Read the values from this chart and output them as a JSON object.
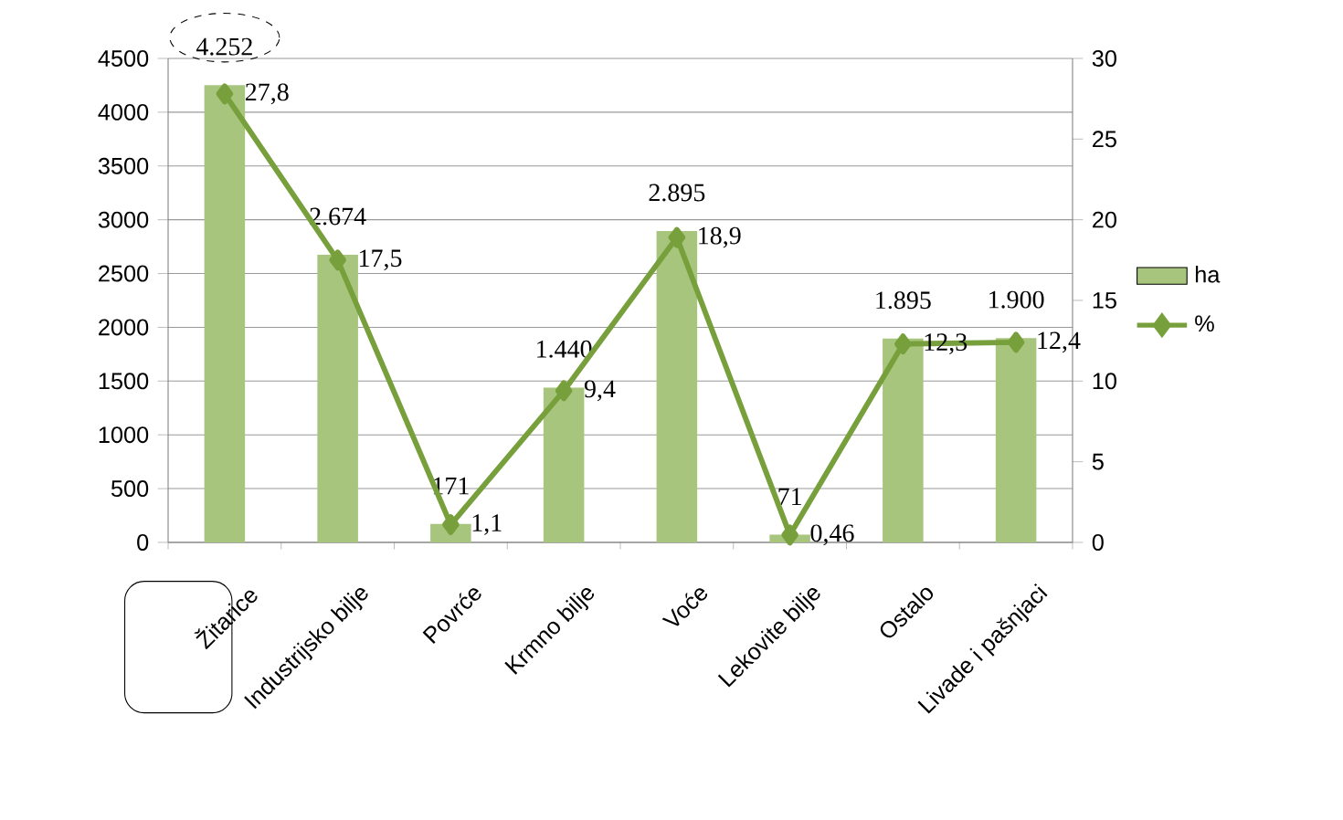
{
  "chart_data": {
    "type": "bar",
    "categories": [
      "Žitarice",
      "Industrijsko bilje",
      "Povrće",
      "Krmno bilje",
      "Voće",
      "Lekovite bilje",
      "Ostalo",
      "Livade i pašnjaci"
    ],
    "series": [
      {
        "name": "ha",
        "color": "#a8c57e",
        "values": [
          4252,
          2674,
          171,
          1440,
          2895,
          71,
          1895,
          1900
        ],
        "value_labels": [
          "4.252",
          "2.674",
          "171",
          "1.440",
          "2.895",
          "71",
          "1.895",
          "1.900"
        ]
      },
      {
        "name": "%",
        "type": "line",
        "axis": "y2",
        "color": "#77a03c",
        "values": [
          27.8,
          17.5,
          1.1,
          9.4,
          18.9,
          0.46,
          12.3,
          12.4
        ],
        "value_labels": [
          "27,8",
          "17,5",
          "1,1",
          "9,4",
          "18,9",
          "0,46",
          "12,3",
          "12,4"
        ]
      }
    ],
    "ylim": [
      0,
      4500
    ],
    "yticks": [
      0,
      500,
      1000,
      1500,
      2000,
      2500,
      3000,
      3500,
      4000,
      4500
    ],
    "y2lim": [
      0,
      30
    ],
    "y2ticks": [
      0,
      5,
      10,
      15,
      20,
      25,
      30
    ],
    "grid": "y",
    "legend": "right",
    "marker": "diamond",
    "line_style": "solid"
  }
}
